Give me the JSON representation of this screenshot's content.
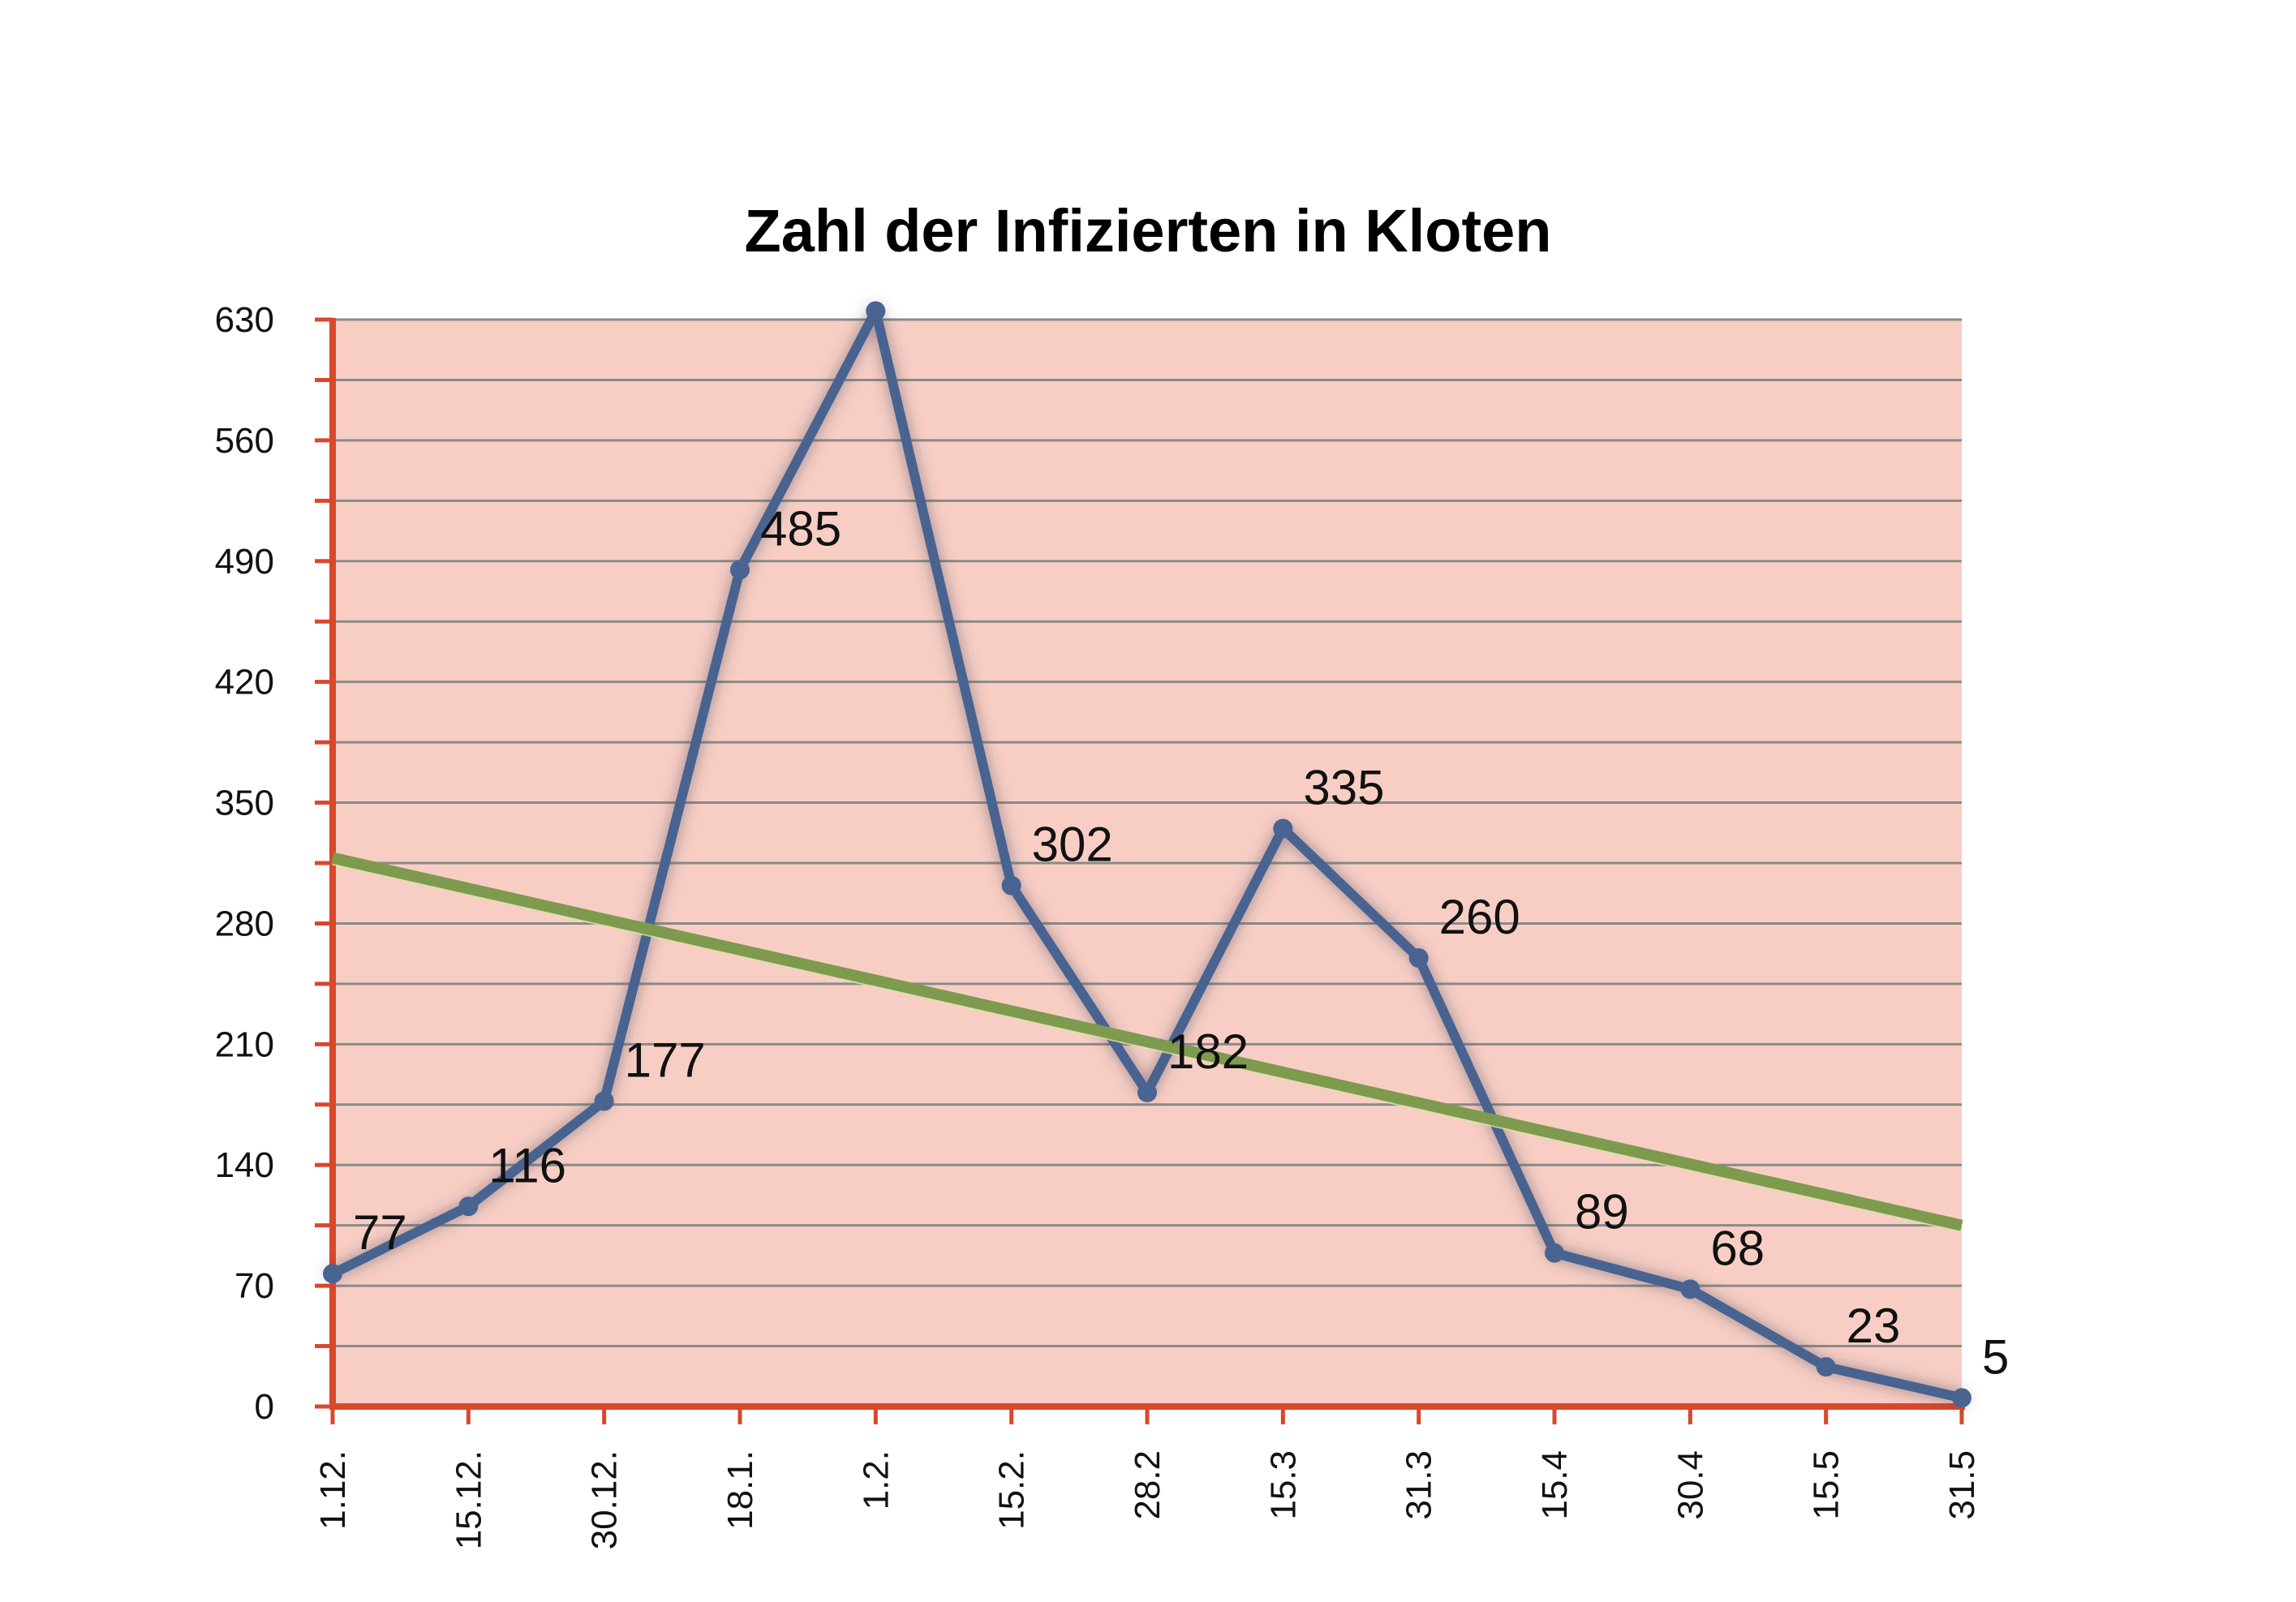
{
  "chart_data": {
    "type": "line",
    "title": "Zahl der Infizierten in Kloten",
    "categories": [
      "1.12.",
      "15.12.",
      "30.12.",
      "18.1.",
      "1.2.",
      "15.2.",
      "28.2",
      "15.3",
      "31.3",
      "15.4",
      "30.4",
      "15.5",
      "31.5"
    ],
    "series": [
      {
        "values": [
          77,
          116,
          177,
          485,
          635,
          302,
          182,
          335,
          260,
          89,
          68,
          23,
          5
        ],
        "data_labels": [
          "77",
          "116",
          "177",
          "485",
          "",
          "302",
          "182",
          "335",
          "260",
          "89",
          "68",
          "23",
          "5"
        ],
        "color": "#4a6491"
      }
    ],
    "trendline": {
      "type": "linear",
      "start": 318,
      "end": 105,
      "color": "#7e9a4f"
    },
    "ylim": [
      0,
      630
    ],
    "yticks": [
      "0",
      "70",
      "140",
      "210",
      "280",
      "350",
      "420",
      "490",
      "560",
      "630"
    ],
    "ytick_values": [
      0,
      70,
      140,
      210,
      280,
      350,
      420,
      490,
      560,
      630
    ],
    "gridline_step": 35,
    "grid": true,
    "legend": "none",
    "xlabel": "",
    "ylabel": "",
    "colors": {
      "plot_background": "#f8cec4",
      "axis": "#d9482b",
      "gridline": "#8a8a8a",
      "line": "#4a6491",
      "trendline": "#7e9a4f"
    }
  }
}
